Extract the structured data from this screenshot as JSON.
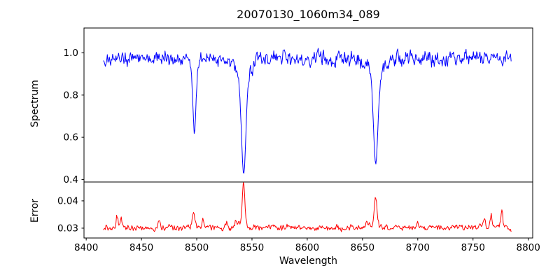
{
  "chart_data": {
    "type": "line",
    "title": "20070130_1060m34_089",
    "xlabel": "Wavelength",
    "xlim": [
      8398,
      8804
    ],
    "xticks": [
      8400,
      8450,
      8500,
      8550,
      8600,
      8650,
      8700,
      8750,
      8800
    ],
    "xtick_labels": [
      "8400",
      "8450",
      "8500",
      "8550",
      "8600",
      "8650",
      "8700",
      "8750",
      "8800"
    ],
    "x_data": {
      "start": 8415.5,
      "end": 8785,
      "step": 0.6
    },
    "grid": false,
    "legend": "none",
    "panels": [
      {
        "name": "spectrum",
        "ylabel": "Spectrum",
        "color": "#0000ff",
        "ylim": [
          0.388,
          1.118
        ],
        "yticks": [
          0.4,
          0.6,
          0.8,
          1.0
        ],
        "ytick_labels": [
          "0.4",
          "0.6",
          "0.8",
          "1.0"
        ],
        "continuum": 0.972,
        "noise": {
          "amp": 0.042,
          "smooth": 0.3,
          "seed": 1234567
        },
        "absorption_lines": [
          {
            "center": 8498.0,
            "depth": 0.31,
            "sigma": 1.3,
            "wing_depth": 0.05,
            "wing_sigma": 3.5,
            "min_flux": 0.62
          },
          {
            "center": 8542.5,
            "depth": 0.47,
            "sigma": 2.0,
            "wing_depth": 0.09,
            "wing_sigma": 6.5,
            "min_flux": 0.43
          },
          {
            "center": 8662.0,
            "depth": 0.43,
            "sigma": 2.0,
            "wing_depth": 0.08,
            "wing_sigma": 6.5,
            "min_flux": 0.47
          }
        ]
      },
      {
        "name": "error",
        "ylabel": "Error",
        "color": "#ff0000",
        "ylim": [
          0.0264,
          0.0469
        ],
        "yticks": [
          0.03,
          0.04
        ],
        "ytick_labels": [
          "0.03",
          "0.04"
        ],
        "baseline": 0.0302,
        "noise": {
          "amp": 0.0013,
          "smooth": 0.35,
          "seed": 424242
        },
        "peaks": [
          {
            "center": 8428.0,
            "amp": 0.0044,
            "sigma": 0.9
          },
          {
            "center": 8431.5,
            "amp": 0.0028,
            "sigma": 0.7
          },
          {
            "center": 8466.0,
            "amp": 0.0026,
            "sigma": 0.9
          },
          {
            "center": 8497.0,
            "amp": 0.0058,
            "sigma": 1.2
          },
          {
            "center": 8505.5,
            "amp": 0.0028,
            "sigma": 0.9
          },
          {
            "center": 8527.0,
            "amp": 0.0018,
            "sigma": 1.0
          },
          {
            "center": 8536.0,
            "amp": 0.002,
            "sigma": 2.2
          },
          {
            "center": 8542.5,
            "amp": 0.0158,
            "sigma": 1.2,
            "peak_value": 0.0465
          },
          {
            "center": 8655.0,
            "amp": 0.0018,
            "sigma": 2.0
          },
          {
            "center": 8662.0,
            "amp": 0.0112,
            "sigma": 1.3,
            "peak_value": 0.042
          },
          {
            "center": 8700.0,
            "amp": 0.0012,
            "sigma": 1.0
          },
          {
            "center": 8760.5,
            "amp": 0.0028,
            "sigma": 0.8
          },
          {
            "center": 8766.5,
            "amp": 0.0046,
            "sigma": 0.8
          },
          {
            "center": 8776.0,
            "amp": 0.0062,
            "sigma": 0.9
          }
        ],
        "end_dip": {
          "center": 8788,
          "amp": 0.0026,
          "sigma": 2.5
        }
      }
    ]
  }
}
